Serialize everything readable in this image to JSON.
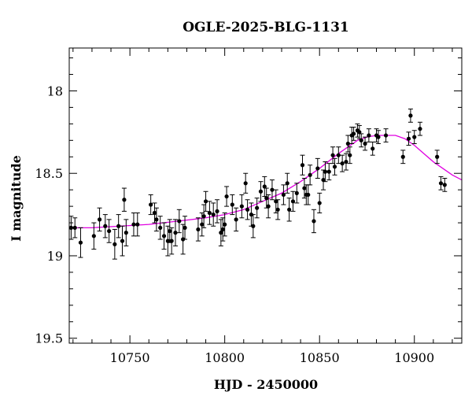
{
  "chart_data": {
    "type": "scatter",
    "title": "OGLE-2025-BLG-1131",
    "xlabel": "HJD - 2450000",
    "ylabel": "I magnitude",
    "xlim": [
      10718,
      10925
    ],
    "ylim": [
      19.53,
      17.74
    ],
    "y_inverted": true,
    "xticks": [
      10750,
      10800,
      10850,
      10900
    ],
    "xtick_labels": [
      "10750",
      "10800",
      "10850",
      "10900"
    ],
    "yticks": [
      18,
      18.5,
      19,
      19.5
    ],
    "ytick_labels": [
      "18",
      "18.5",
      "19",
      "19.5"
    ],
    "grid": false,
    "colors": {
      "points": "#000000",
      "model": "#e000e0",
      "frame": "#000000"
    },
    "series": [
      {
        "kind": "observations",
        "x": [
          10719,
          10721,
          10724,
          10731,
          10734,
          10737,
          10739,
          10742,
          10744,
          10746,
          10747,
          10748,
          10752,
          10754,
          10761,
          10763,
          10764,
          10766,
          10768,
          10770,
          10771,
          10772,
          10774,
          10776,
          10778,
          10779,
          10786,
          10788,
          10789,
          10790,
          10792,
          10794,
          10796,
          10798,
          10799,
          10800,
          10801,
          10804,
          10806,
          10809,
          10811,
          10812,
          10814,
          10815,
          10817,
          10819,
          10821,
          10822,
          10823,
          10825,
          10827,
          10828,
          10831,
          10833,
          10834,
          10836,
          10838,
          10841,
          10842,
          10843,
          10844,
          10845,
          10847,
          10849,
          10850,
          10852,
          10853,
          10855,
          10857,
          10858,
          10860,
          10862,
          10864,
          10865,
          10866,
          10867,
          10868,
          10870,
          10871,
          10872,
          10874,
          10876,
          10878,
          10880,
          10881,
          10885,
          10894,
          10897,
          10898,
          10900,
          10903,
          10912,
          10914,
          10916
        ],
        "y": [
          18.83,
          18.83,
          18.92,
          18.88,
          18.78,
          18.82,
          18.85,
          18.93,
          18.82,
          18.91,
          18.66,
          18.86,
          18.81,
          18.81,
          18.69,
          18.74,
          18.78,
          18.83,
          18.88,
          18.91,
          18.85,
          18.91,
          18.86,
          18.79,
          18.9,
          18.83,
          18.84,
          18.81,
          18.76,
          18.67,
          18.74,
          18.75,
          18.73,
          18.86,
          18.84,
          18.81,
          18.64,
          18.69,
          18.78,
          18.7,
          18.56,
          18.72,
          18.75,
          18.82,
          18.71,
          18.61,
          18.58,
          18.65,
          18.7,
          18.6,
          18.67,
          18.72,
          18.63,
          18.56,
          18.72,
          18.67,
          18.62,
          18.45,
          18.59,
          18.63,
          18.63,
          18.51,
          18.79,
          18.47,
          18.68,
          18.54,
          18.49,
          18.49,
          18.39,
          18.46,
          18.39,
          18.44,
          18.43,
          18.32,
          18.39,
          18.27,
          18.26,
          18.24,
          18.25,
          18.3,
          18.32,
          18.27,
          18.35,
          18.27,
          18.28,
          18.27,
          18.4,
          18.29,
          18.15,
          18.28,
          18.23,
          18.4,
          18.56,
          18.57
        ],
        "yerr": [
          0.07,
          0.06,
          0.09,
          0.08,
          0.07,
          0.07,
          0.07,
          0.09,
          0.07,
          0.09,
          0.07,
          0.08,
          0.07,
          0.07,
          0.06,
          0.06,
          0.07,
          0.07,
          0.08,
          0.09,
          0.07,
          0.08,
          0.08,
          0.07,
          0.09,
          0.07,
          0.07,
          0.07,
          0.07,
          0.06,
          0.07,
          0.07,
          0.07,
          0.08,
          0.07,
          0.07,
          0.06,
          0.06,
          0.07,
          0.07,
          0.06,
          0.06,
          0.07,
          0.07,
          0.06,
          0.06,
          0.06,
          0.06,
          0.07,
          0.06,
          0.07,
          0.06,
          0.06,
          0.06,
          0.07,
          0.06,
          0.06,
          0.06,
          0.06,
          0.06,
          0.06,
          0.06,
          0.07,
          0.06,
          0.06,
          0.06,
          0.06,
          0.05,
          0.05,
          0.05,
          0.05,
          0.05,
          0.05,
          0.05,
          0.05,
          0.05,
          0.04,
          0.04,
          0.04,
          0.04,
          0.04,
          0.04,
          0.04,
          0.04,
          0.04,
          0.04,
          0.04,
          0.04,
          0.04,
          0.04,
          0.04,
          0.04,
          0.04,
          0.04
        ]
      },
      {
        "kind": "model_curve",
        "x": [
          10718,
          10730,
          10745,
          10760,
          10775,
          10790,
          10800,
          10810,
          10820,
          10830,
          10840,
          10850,
          10860,
          10870,
          10875,
          10880,
          10885,
          10890,
          10895,
          10900,
          10905,
          10910,
          10915,
          10920,
          10925
        ],
        "y": [
          18.83,
          18.83,
          18.82,
          18.81,
          18.79,
          18.77,
          18.75,
          18.72,
          18.67,
          18.62,
          18.55,
          18.47,
          18.38,
          18.3,
          18.28,
          18.27,
          18.27,
          18.27,
          18.29,
          18.33,
          18.38,
          18.43,
          18.47,
          18.51,
          18.54
        ]
      }
    ]
  }
}
